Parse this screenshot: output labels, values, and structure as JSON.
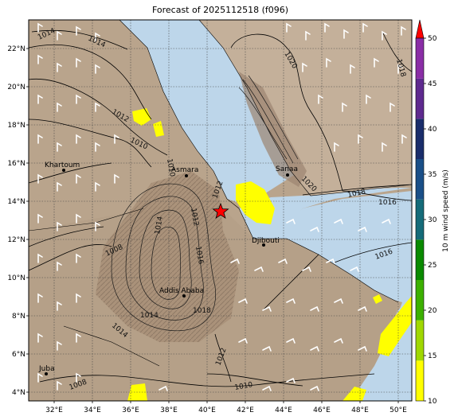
{
  "title": "Forecast of 2025112518 (f096)",
  "map": {
    "lon_ticks": [
      "32°E",
      "34°E",
      "36°E",
      "38°E",
      "40°E",
      "42°E",
      "44°E",
      "46°E",
      "48°E",
      "50°E"
    ],
    "lat_ticks": [
      "4°N",
      "6°N",
      "8°N",
      "10°N",
      "12°N",
      "14°N",
      "16°N",
      "18°N",
      "20°N",
      "22°N"
    ],
    "cities": [
      {
        "name": "Khartoum"
      },
      {
        "name": "Asmara"
      },
      {
        "name": "Sanaa"
      },
      {
        "name": "Djibouti"
      },
      {
        "name": "Addis Ababa"
      },
      {
        "name": "Juba"
      }
    ],
    "marker": {
      "type": "star",
      "color": "#ff0000"
    },
    "isobar_labels": [
      "1014",
      "1014",
      "1012",
      "1010",
      "1020",
      "1018",
      "1018",
      "1016",
      "1016",
      "1012",
      "1014",
      "1014",
      "1008",
      "1018",
      "1010",
      "1012",
      "1014",
      "1016",
      "1008",
      "1010",
      "1012",
      "1020"
    ]
  },
  "colorbar": {
    "label": "10 m wind speed (m/s)",
    "ticks": [
      "10",
      "15",
      "20",
      "25",
      "30",
      "35",
      "40",
      "45",
      "50"
    ],
    "colors": [
      "#ffff00",
      "#a0d800",
      "#3cb000",
      "#0a8a00",
      "#156b79",
      "#1a4f88",
      "#1a2d6b",
      "#5e2a8f",
      "#8a2ea6"
    ],
    "extend_color": "#ff0000"
  },
  "colors": {
    "sea": "#bdd6ea",
    "land": "#b9a48c",
    "highland": "#9c8570",
    "wind_highlight": "#ffff00"
  }
}
